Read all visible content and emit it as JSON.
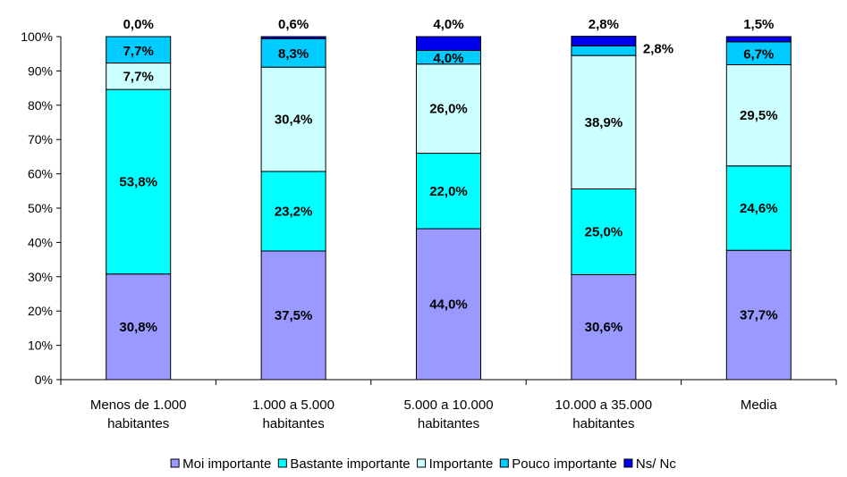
{
  "chart_data": {
    "type": "bar",
    "stacked": true,
    "categories": [
      [
        "Menos de 1.000",
        "habitantes"
      ],
      [
        "1.000 a 5.000",
        "habitantes"
      ],
      [
        "5.000 a 10.000",
        "habitantes"
      ],
      [
        "10.000 a 35.000",
        "habitantes"
      ],
      [
        "Media"
      ]
    ],
    "series": [
      {
        "name": "Moi importante",
        "color": "#9999ff",
        "values": [
          30.8,
          37.5,
          44.0,
          30.6,
          37.7
        ],
        "labels": [
          "30,8%",
          "37,5%",
          "44,0%",
          "30,6%",
          "37,7%"
        ]
      },
      {
        "name": "Bastante importante",
        "color": "#00ffff",
        "values": [
          53.8,
          23.2,
          22.0,
          25.0,
          24.6
        ],
        "labels": [
          "53,8%",
          "23,2%",
          "22,0%",
          "25,0%",
          "24,6%"
        ]
      },
      {
        "name": "Importante",
        "color": "#ccffff",
        "values": [
          7.7,
          30.4,
          26.0,
          38.9,
          29.5
        ],
        "labels": [
          "7,7%",
          "30,4%",
          "26,0%",
          "38,9%",
          "29,5%"
        ]
      },
      {
        "name": "Pouco importante",
        "color": "#00ccff",
        "values": [
          7.7,
          8.3,
          4.0,
          2.8,
          6.7
        ],
        "labels": [
          "7,7%",
          "8,3%",
          "4,0%",
          "2,8%",
          "6,7%"
        ]
      },
      {
        "name": "Ns/ Nc",
        "color": "#0000ee",
        "values": [
          0.0,
          0.6,
          4.0,
          2.8,
          1.5
        ],
        "labels": [
          "0,0%",
          "0,6%",
          "4,0%",
          "2,8%",
          "1,5%"
        ]
      }
    ],
    "yticks": [
      "0%",
      "10%",
      "20%",
      "30%",
      "40%",
      "50%",
      "60%",
      "70%",
      "80%",
      "90%",
      "100%"
    ],
    "ylim": [
      0,
      100
    ],
    "legend_position": "bottom",
    "grid": false
  }
}
